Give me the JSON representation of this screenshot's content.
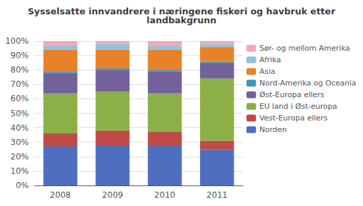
{
  "chart_data": {
    "type": "bar",
    "title": "Sysselsatte innvandrere i næringene fiskeri og havbruk etter\nlandbakgrunn",
    "categories": [
      "2008",
      "2009",
      "2010",
      "2011"
    ],
    "series": [
      {
        "name": "Norden",
        "color": "#4F6EBF",
        "values": [
          27,
          28,
          28,
          25
        ]
      },
      {
        "name": "Vest-Europa ellers",
        "color": "#BE4B48",
        "values": [
          9,
          10,
          9,
          6
        ]
      },
      {
        "name": "EU land i Øst-europa",
        "color": "#8DAF47",
        "values": [
          28,
          27,
          27,
          43
        ]
      },
      {
        "name": "Øst-Europa ellers",
        "color": "#72619A",
        "values": [
          14,
          15,
          15,
          11
        ]
      },
      {
        "name": "Nord-Amerika og Oceania",
        "color": "#3B9AB7",
        "values": [
          1,
          1,
          1,
          1
        ]
      },
      {
        "name": "Asia",
        "color": "#E8812A",
        "values": [
          15,
          13,
          14,
          10
        ]
      },
      {
        "name": "Afrika",
        "color": "#91C4D8",
        "values": [
          3,
          4,
          3,
          2
        ]
      },
      {
        "name": "Sør- og mellom Amerika",
        "color": "#F2A7BB",
        "values": [
          3,
          2,
          3,
          2
        ]
      }
    ],
    "ylim": [
      0,
      100
    ],
    "yticks": [
      {
        "value": 0,
        "label": "0%"
      },
      {
        "value": 10,
        "label": "10%"
      },
      {
        "value": 20,
        "label": "20%"
      },
      {
        "value": 30,
        "label": "30%"
      },
      {
        "value": 40,
        "label": "40%"
      },
      {
        "value": 50,
        "label": "50%"
      },
      {
        "value": 60,
        "label": "60%"
      },
      {
        "value": 70,
        "label": "70%"
      },
      {
        "value": 80,
        "label": "80%"
      },
      {
        "value": 90,
        "label": "90%"
      },
      {
        "value": 100,
        "label": "100%"
      }
    ],
    "stacked": true,
    "grid": true,
    "legend": "right"
  }
}
